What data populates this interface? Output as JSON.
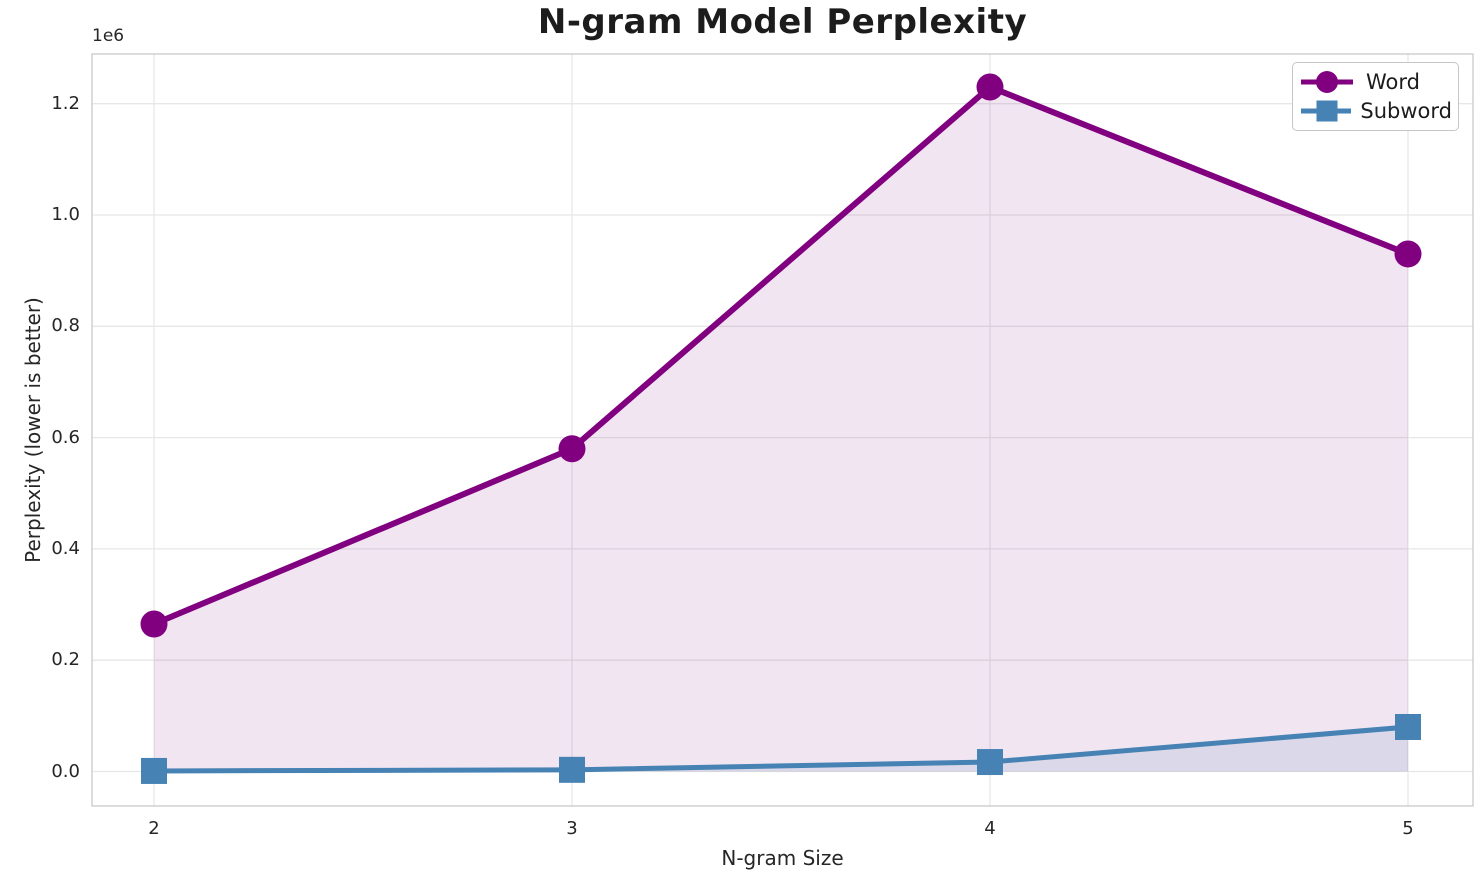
{
  "title": "N-gram Model Perplexity",
  "axes": {
    "x_label": "N-gram Size",
    "y_label": "Perplexity (lower is better)",
    "y_offset": "1e6",
    "x_ticks": [
      "2",
      "3",
      "4",
      "5"
    ],
    "y_ticks": [
      "0.0",
      "0.2",
      "0.4",
      "0.6",
      "0.8",
      "1.0",
      "1.2"
    ]
  },
  "legend": {
    "position": "upper right",
    "items": [
      {
        "label": "Word",
        "color": "#800080",
        "marker": "circle"
      },
      {
        "label": "Subword",
        "color": "#4682B4",
        "marker": "square"
      }
    ]
  },
  "chart_data": {
    "type": "line",
    "title": "N-gram Model Perplexity",
    "xlabel": "N-gram Size",
    "ylabel": "Perplexity (lower is better)",
    "x": [
      2,
      3,
      4,
      5
    ],
    "series": [
      {
        "name": "Word",
        "color": "#800080",
        "marker": "circle",
        "line_width": 6,
        "fill_alpha": 0.1,
        "values": [
          265000,
          580000,
          1230000,
          930000
        ]
      },
      {
        "name": "Subword",
        "color": "#4682B4",
        "marker": "square",
        "line_width": 5,
        "fill_alpha": 0.13,
        "values": [
          1000,
          3000,
          17000,
          80000
        ]
      }
    ],
    "y_tick_values": [
      0,
      200000,
      400000,
      600000,
      800000,
      1000000,
      1200000
    ],
    "y_offset_factor": "1e6",
    "xlim": [
      1.85,
      5.16
    ],
    "ylim": [
      -62000,
      1290000
    ],
    "grid": true,
    "legend_position": "upper right",
    "area_fill": "each series filled down to zero with low alpha"
  }
}
